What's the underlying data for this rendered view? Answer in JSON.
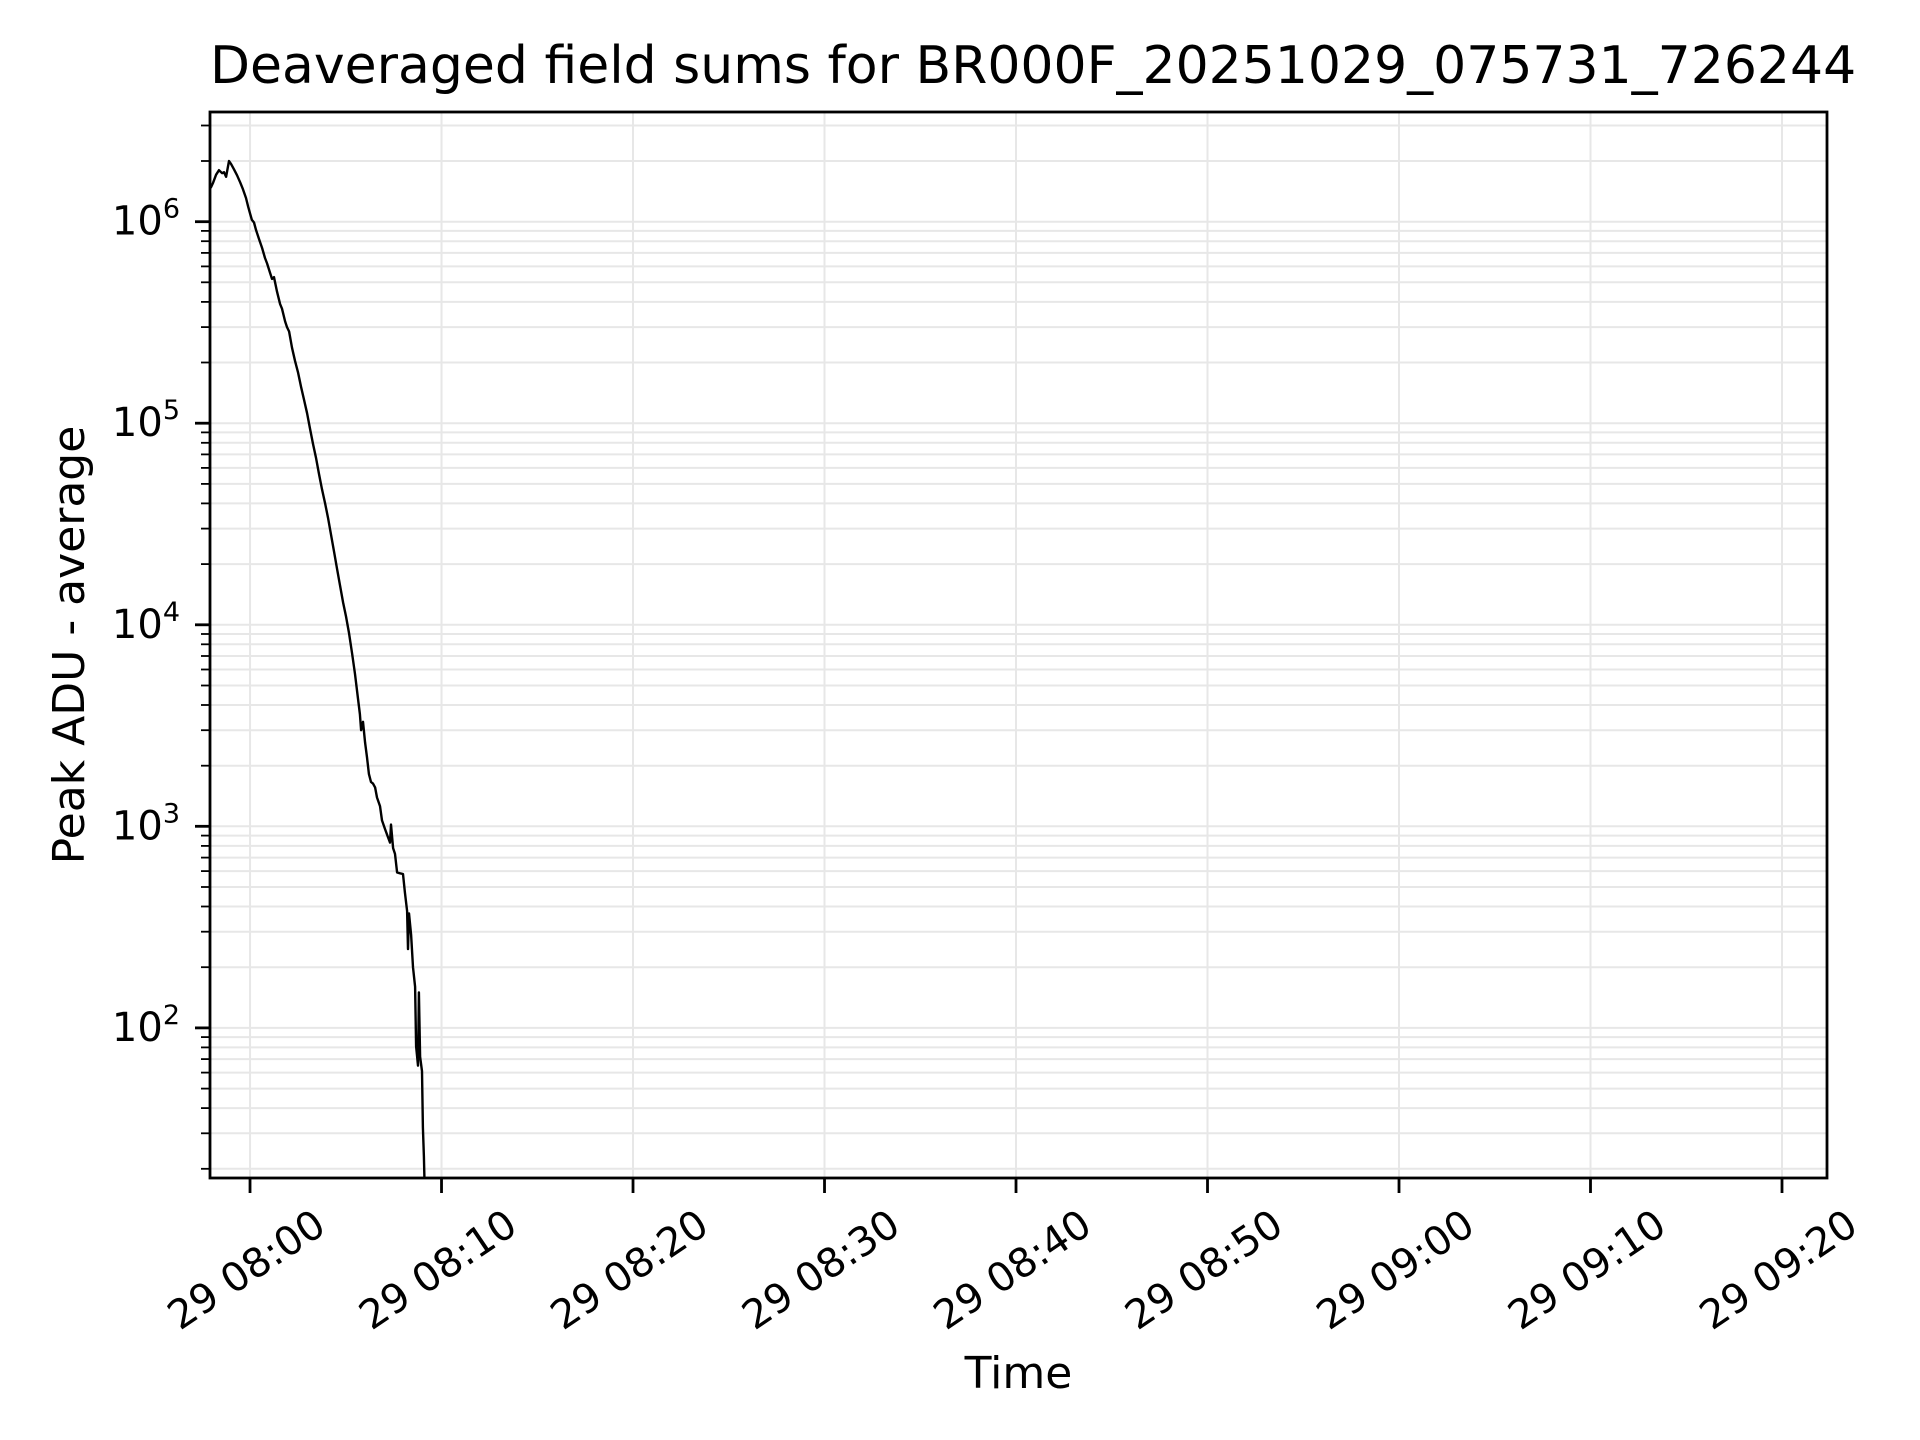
{
  "chart_data": {
    "type": "line",
    "title": "Deaveraged field sums for BR000F_20251029_075731_726244",
    "xlabel": "Time",
    "ylabel": "Peak ADU - average",
    "y_scale": "log",
    "grid": true,
    "legend_position": "none",
    "background_color": "#ffffff",
    "line_color": "#000000",
    "grid_color": "#e7e7e7",
    "axis_color": "#000000",
    "x_axis": {
      "tick_labels": [
        "29 08:00",
        "29 08:10",
        "29 08:20",
        "29 08:30",
        "29 08:40",
        "29 08:50",
        "29 09:00",
        "29 09:10",
        "29 09:20"
      ],
      "tick_minutes_after_0800": [
        0,
        10,
        20,
        30,
        40,
        50,
        60,
        70,
        80
      ],
      "xlim_minutes_after_0800": [
        -2.09,
        82.35
      ]
    },
    "y_axis": {
      "major_tick_exponents": [
        2,
        3,
        4,
        5,
        6
      ],
      "major_tick_labels": [
        "10^2",
        "10^3",
        "10^4",
        "10^5",
        "10^6"
      ],
      "minor_ticks_per_decade": [
        2,
        3,
        4,
        5,
        6,
        7,
        8,
        9
      ],
      "ylim": [
        18,
        3500000
      ]
    },
    "series": [
      {
        "name": "Peak ADU - average",
        "color": "#000000",
        "points": [
          [
            -2.04,
            1480000.0
          ],
          [
            -1.93,
            1560000.0
          ],
          [
            -1.77,
            1710000.0
          ],
          [
            -1.62,
            1800000.0
          ],
          [
            -1.46,
            1740000.0
          ],
          [
            -1.36,
            1760000.0
          ],
          [
            -1.25,
            1670000.0
          ],
          [
            -1.1,
            2000000.0
          ],
          [
            -0.99,
            1930000.0
          ],
          [
            -0.84,
            1820000.0
          ],
          [
            -0.68,
            1700000.0
          ],
          [
            -0.52,
            1570000.0
          ],
          [
            -0.37,
            1450000.0
          ],
          [
            -0.21,
            1310000.0
          ],
          [
            -0.1,
            1190000.0
          ],
          [
            0.0,
            1100000.0
          ],
          [
            0.1,
            1020000.0
          ],
          [
            0.21,
            990000.0
          ],
          [
            0.31,
            910000.0
          ],
          [
            0.47,
            820000.0
          ],
          [
            0.63,
            740000.0
          ],
          [
            0.78,
            660000.0
          ],
          [
            0.89,
            620000.0
          ],
          [
            1.04,
            560000.0
          ],
          [
            1.15,
            520000.0
          ],
          [
            1.25,
            530000.0
          ],
          [
            1.41,
            450000.0
          ],
          [
            1.57,
            390000.0
          ],
          [
            1.67,
            370000.0
          ],
          [
            1.83,
            320000.0
          ],
          [
            1.93,
            300000.0
          ],
          [
            2.04,
            285000.0
          ],
          [
            2.19,
            237000.0
          ],
          [
            2.35,
            204000.0
          ],
          [
            2.51,
            178000.0
          ],
          [
            2.66,
            152000.0
          ],
          [
            2.82,
            131000.0
          ],
          [
            2.98,
            112000.0
          ],
          [
            3.13,
            94000.0
          ],
          [
            3.29,
            79000.0
          ],
          [
            3.45,
            67000.0
          ],
          [
            3.6,
            56000.0
          ],
          [
            3.76,
            47000.0
          ],
          [
            3.92,
            40000.0
          ],
          [
            4.07,
            34000.0
          ],
          [
            4.23,
            28000.0
          ],
          [
            4.39,
            23000.0
          ],
          [
            4.54,
            19000.0
          ],
          [
            4.7,
            15700.0
          ],
          [
            4.86,
            12900.0
          ],
          [
            5.01,
            11000.0
          ],
          [
            5.17,
            9100.0
          ],
          [
            5.33,
            7200.0
          ],
          [
            5.48,
            5700.0
          ],
          [
            5.64,
            4300.0
          ],
          [
            5.74,
            3600.0
          ],
          [
            5.8,
            3000.0
          ],
          [
            5.9,
            3300.0
          ],
          [
            6.01,
            2600.0
          ],
          [
            6.11,
            2200.0
          ],
          [
            6.21,
            1820.0
          ],
          [
            6.32,
            1660.0
          ],
          [
            6.42,
            1630.0
          ],
          [
            6.53,
            1560.0
          ],
          [
            6.63,
            1390.0
          ],
          [
            6.79,
            1260.0
          ],
          [
            6.89,
            1070.0
          ],
          [
            7.05,
            970.0
          ],
          [
            7.21,
            880.0
          ],
          [
            7.31,
            830.0
          ],
          [
            7.36,
            1020.0
          ],
          [
            7.47,
            780.0
          ],
          [
            7.57,
            730.0
          ],
          [
            7.68,
            590.0
          ],
          [
            7.83,
            585.0
          ],
          [
            7.99,
            580.0
          ],
          [
            8.09,
            470.0
          ],
          [
            8.2,
            380.0
          ],
          [
            8.25,
            246.0
          ],
          [
            8.3,
            370.0
          ],
          [
            8.41,
            290.0
          ],
          [
            8.51,
            200.0
          ],
          [
            8.62,
            160.0
          ],
          [
            8.67,
            81.0
          ],
          [
            8.77,
            65.0
          ],
          [
            8.82,
            150.0
          ],
          [
            8.88,
            72.0
          ],
          [
            8.98,
            61.0
          ],
          [
            9.03,
            32.0
          ],
          [
            9.08,
            23.0
          ],
          [
            9.14,
            13.0
          ]
        ]
      }
    ]
  }
}
